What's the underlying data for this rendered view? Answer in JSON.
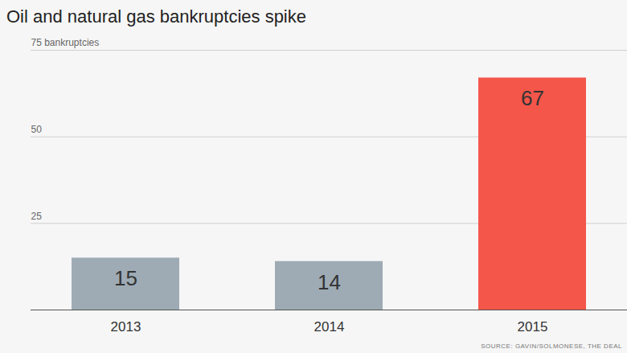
{
  "chart_data": {
    "type": "bar",
    "title": "Oil and natural gas bankruptcies spike",
    "source": "SOURCE: GAVIN/SOLMONESE, THE DEAL",
    "categories": [
      "2013",
      "2014",
      "2015"
    ],
    "values": [
      15,
      14,
      67
    ],
    "colors": [
      "#9eabb5",
      "#9eabb5",
      "#f4564a"
    ],
    "ylim": [
      0,
      75
    ],
    "yticks": [
      25,
      50,
      {
        "value": 75,
        "label": "75 bankruptcies"
      }
    ],
    "grid": true,
    "data_labels": true
  }
}
